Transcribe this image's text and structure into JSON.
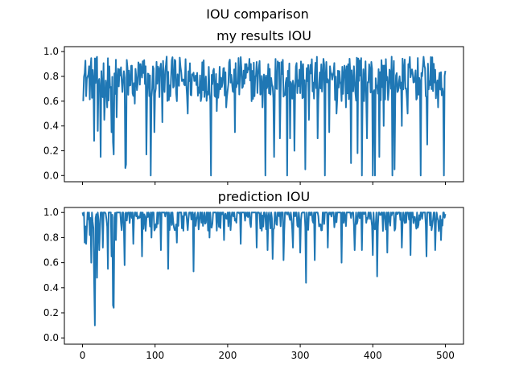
{
  "figure": {
    "suptitle": "IOU comparison"
  },
  "chart_data": [
    {
      "type": "line",
      "title": "my results IOU",
      "xlim": [
        -25,
        525
      ],
      "ylim": [
        -0.05,
        1.04
      ],
      "xticks": [
        0,
        100,
        200,
        300,
        400,
        500
      ],
      "xtick_labels_shown": false,
      "yticks": [
        0.0,
        0.2,
        0.4,
        0.6,
        0.8,
        1.0
      ],
      "ytick_labels": [
        "0.0",
        "0.2",
        "0.4",
        "0.6",
        "0.8",
        "1.0"
      ],
      "color": "#1f77b4",
      "seed": 12345,
      "base_range": [
        0.6,
        0.96
      ],
      "dips": [
        [
          16,
          0.28
        ],
        [
          21,
          0.36
        ],
        [
          25,
          0.15
        ],
        [
          30,
          0.45
        ],
        [
          34,
          0.55
        ],
        [
          40,
          0.35
        ],
        [
          42,
          0.27
        ],
        [
          43,
          0.17
        ],
        [
          47,
          0.47
        ],
        [
          59,
          0.06
        ],
        [
          60,
          0.09
        ],
        [
          72,
          0.58
        ],
        [
          88,
          0.17
        ],
        [
          94,
          0.0
        ],
        [
          99,
          0.35
        ],
        [
          110,
          0.43
        ],
        [
          130,
          0.6
        ],
        [
          145,
          0.5
        ],
        [
          177,
          0.0
        ],
        [
          185,
          0.52
        ],
        [
          198,
          0.55
        ],
        [
          210,
          0.35
        ],
        [
          233,
          0.6
        ],
        [
          248,
          0.55
        ],
        [
          252,
          0.0
        ],
        [
          264,
          0.15
        ],
        [
          272,
          0.3
        ],
        [
          282,
          0.0
        ],
        [
          286,
          0.3
        ],
        [
          292,
          0.2
        ],
        [
          307,
          0.05
        ],
        [
          312,
          0.45
        ],
        [
          324,
          0.3
        ],
        [
          334,
          0.0
        ],
        [
          340,
          0.35
        ],
        [
          350,
          0.5
        ],
        [
          363,
          0.55
        ],
        [
          370,
          0.1
        ],
        [
          379,
          0.18
        ],
        [
          385,
          0.0
        ],
        [
          392,
          0.3
        ],
        [
          400,
          0.0
        ],
        [
          403,
          0.0
        ],
        [
          409,
          0.15
        ],
        [
          415,
          0.4
        ],
        [
          427,
          0.0
        ],
        [
          430,
          0.05
        ],
        [
          440,
          0.4
        ],
        [
          448,
          0.5
        ],
        [
          466,
          0.0
        ],
        [
          475,
          0.25
        ],
        [
          490,
          0.55
        ],
        [
          498,
          0.0
        ]
      ]
    },
    {
      "type": "line",
      "title": "prediction IOU",
      "xlim": [
        -25,
        525
      ],
      "ylim": [
        -0.05,
        1.04
      ],
      "xticks": [
        0,
        100,
        200,
        300,
        400,
        500
      ],
      "xtick_labels": [
        "0",
        "100",
        "200",
        "300",
        "400",
        "500"
      ],
      "yticks": [
        0.0,
        0.2,
        0.4,
        0.6,
        0.8,
        1.0
      ],
      "ytick_labels": [
        "0.0",
        "0.2",
        "0.4",
        "0.6",
        "0.8",
        "1.0"
      ],
      "color": "#1f77b4",
      "seed": 777,
      "base_range": [
        0.85,
        1.0
      ],
      "dips": [
        [
          3,
          0.76
        ],
        [
          5,
          0.75
        ],
        [
          10,
          0.82
        ],
        [
          12,
          0.6
        ],
        [
          16,
          0.46
        ],
        [
          17,
          0.1
        ],
        [
          20,
          0.48
        ],
        [
          23,
          0.7
        ],
        [
          28,
          0.72
        ],
        [
          35,
          0.55
        ],
        [
          40,
          0.65
        ],
        [
          42,
          0.26
        ],
        [
          43,
          0.24
        ],
        [
          46,
          0.78
        ],
        [
          58,
          0.58
        ],
        [
          70,
          0.75
        ],
        [
          82,
          0.65
        ],
        [
          95,
          0.8
        ],
        [
          108,
          0.7
        ],
        [
          118,
          0.55
        ],
        [
          130,
          0.76
        ],
        [
          153,
          0.53
        ],
        [
          175,
          0.8
        ],
        [
          195,
          0.78
        ],
        [
          218,
          0.75
        ],
        [
          240,
          0.72
        ],
        [
          255,
          0.7
        ],
        [
          262,
          0.63
        ],
        [
          277,
          0.62
        ],
        [
          290,
          0.72
        ],
        [
          300,
          0.68
        ],
        [
          308,
          0.44
        ],
        [
          320,
          0.62
        ],
        [
          338,
          0.72
        ],
        [
          357,
          0.6
        ],
        [
          375,
          0.7
        ],
        [
          385,
          0.7
        ],
        [
          400,
          0.66
        ],
        [
          406,
          0.49
        ],
        [
          420,
          0.68
        ],
        [
          440,
          0.72
        ],
        [
          452,
          0.66
        ],
        [
          474,
          0.65
        ],
        [
          486,
          0.7
        ],
        [
          494,
          0.78
        ]
      ]
    }
  ]
}
